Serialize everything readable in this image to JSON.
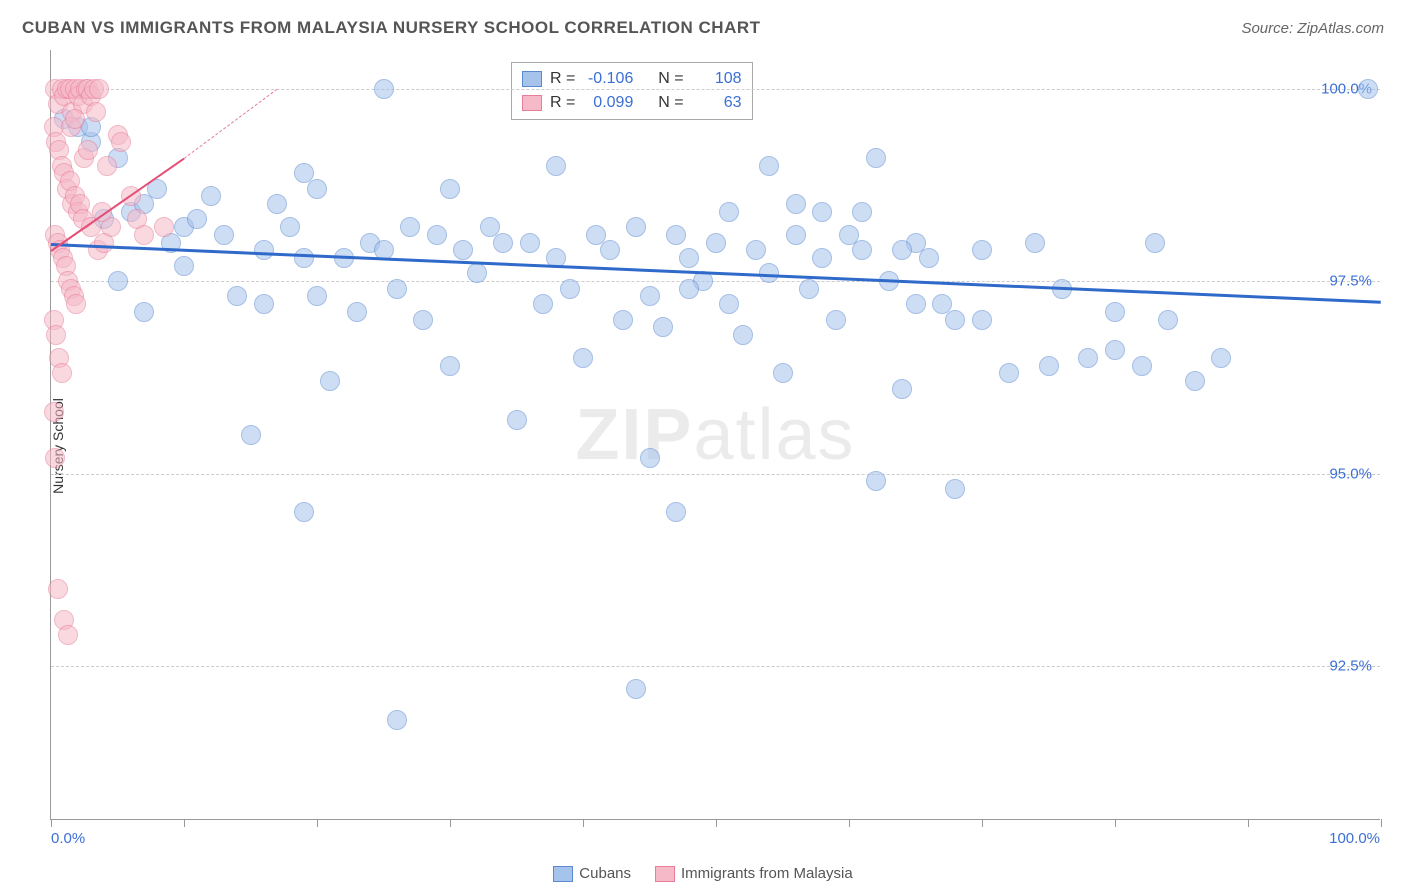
{
  "header": {
    "title": "CUBAN VS IMMIGRANTS FROM MALAYSIA NURSERY SCHOOL CORRELATION CHART",
    "source": "Source: ZipAtlas.com"
  },
  "chart": {
    "type": "scatter",
    "ylabel": "Nursery School",
    "xlim": [
      0,
      100
    ],
    "ylim": [
      90.5,
      100.5
    ],
    "yticks": [
      {
        "value": 92.5,
        "label": "92.5%"
      },
      {
        "value": 95.0,
        "label": "95.0%"
      },
      {
        "value": 97.5,
        "label": "97.5%"
      },
      {
        "value": 100.0,
        "label": "100.0%"
      }
    ],
    "xtick_positions": [
      0,
      10,
      20,
      30,
      40,
      50,
      60,
      70,
      80,
      90,
      100
    ],
    "xaxis_left_label": "0.0%",
    "xaxis_right_label": "100.0%",
    "grid_color": "#cccccc",
    "background_color": "#ffffff",
    "marker_radius": 10,
    "marker_opacity": 0.55,
    "series": [
      {
        "name": "Cubans",
        "fill": "#a6c3ec",
        "stroke": "#5b8ad1",
        "line_color": "#2f69c9",
        "line_width": 3,
        "r_value": "-0.106",
        "n_value": "108",
        "trend": {
          "x1": 0,
          "y1": 98.0,
          "x2": 100,
          "y2": 97.25
        },
        "points": [
          [
            25,
            100
          ],
          [
            99,
            100
          ],
          [
            1,
            99.6
          ],
          [
            2,
            99.5
          ],
          [
            3,
            99.3
          ],
          [
            3,
            99.5
          ],
          [
            19,
            98.9
          ],
          [
            20,
            98.7
          ],
          [
            30,
            98.7
          ],
          [
            38,
            99.0
          ],
          [
            54,
            99.0
          ],
          [
            62,
            99.1
          ],
          [
            4,
            98.3
          ],
          [
            6,
            98.4
          ],
          [
            7,
            98.5
          ],
          [
            9,
            98.0
          ],
          [
            10,
            97.7
          ],
          [
            10,
            98.2
          ],
          [
            11,
            98.3
          ],
          [
            13,
            98.1
          ],
          [
            14,
            97.3
          ],
          [
            16,
            97.9
          ],
          [
            16,
            97.2
          ],
          [
            18,
            98.2
          ],
          [
            19,
            97.8
          ],
          [
            20,
            97.3
          ],
          [
            21,
            96.2
          ],
          [
            22,
            97.8
          ],
          [
            23,
            97.1
          ],
          [
            24,
            98.0
          ],
          [
            25,
            97.9
          ],
          [
            26,
            97.4
          ],
          [
            27,
            98.2
          ],
          [
            28,
            97.0
          ],
          [
            29,
            98.1
          ],
          [
            30,
            96.4
          ],
          [
            31,
            97.9
          ],
          [
            32,
            97.6
          ],
          [
            33,
            98.2
          ],
          [
            34,
            98.0
          ],
          [
            35,
            95.7
          ],
          [
            36,
            98.0
          ],
          [
            37,
            97.2
          ],
          [
            38,
            97.8
          ],
          [
            39,
            97.4
          ],
          [
            40,
            96.5
          ],
          [
            41,
            98.1
          ],
          [
            42,
            97.9
          ],
          [
            43,
            97.0
          ],
          [
            44,
            98.2
          ],
          [
            45,
            97.3
          ],
          [
            46,
            96.9
          ],
          [
            47,
            98.1
          ],
          [
            48,
            97.8
          ],
          [
            49,
            97.5
          ],
          [
            50,
            98.0
          ],
          [
            51,
            97.2
          ],
          [
            52,
            96.8
          ],
          [
            53,
            97.9
          ],
          [
            54,
            97.6
          ],
          [
            55,
            96.3
          ],
          [
            56,
            98.1
          ],
          [
            57,
            97.4
          ],
          [
            58,
            97.8
          ],
          [
            59,
            97.0
          ],
          [
            60,
            98.1
          ],
          [
            61,
            97.9
          ],
          [
            62,
            94.9
          ],
          [
            63,
            97.5
          ],
          [
            64,
            96.1
          ],
          [
            65,
            98.0
          ],
          [
            66,
            97.8
          ],
          [
            67,
            97.2
          ],
          [
            68,
            97.0
          ],
          [
            70,
            97.9
          ],
          [
            72,
            96.3
          ],
          [
            74,
            98.0
          ],
          [
            76,
            97.4
          ],
          [
            78,
            96.5
          ],
          [
            80,
            97.1
          ],
          [
            82,
            96.4
          ],
          [
            84,
            97.0
          ],
          [
            86,
            96.2
          ],
          [
            88,
            96.5
          ],
          [
            5,
            99.1
          ],
          [
            8,
            98.7
          ],
          [
            12,
            98.6
          ],
          [
            17,
            98.5
          ],
          [
            15,
            95.5
          ],
          [
            19,
            94.5
          ],
          [
            26,
            91.8
          ],
          [
            44,
            92.2
          ],
          [
            45,
            95.2
          ],
          [
            47,
            94.5
          ],
          [
            48,
            97.4
          ],
          [
            51,
            98.4
          ],
          [
            56,
            98.5
          ],
          [
            58,
            98.4
          ],
          [
            61,
            98.4
          ],
          [
            64,
            97.9
          ],
          [
            65,
            97.2
          ],
          [
            68,
            94.8
          ],
          [
            70,
            97.0
          ],
          [
            75,
            96.4
          ],
          [
            80,
            96.6
          ],
          [
            83,
            98.0
          ],
          [
            5,
            97.5
          ],
          [
            7,
            97.1
          ]
        ]
      },
      {
        "name": "Immigrants from Malaysia",
        "fill": "#f5b9c8",
        "stroke": "#e77d98",
        "line_color": "#e54f77",
        "line_width": 2.5,
        "r_value": "0.099",
        "n_value": "63",
        "trend": {
          "x1": 0,
          "y1": 97.9,
          "x2": 10,
          "y2": 99.1
        },
        "projection": {
          "x1": 10,
          "y1": 99.1,
          "x2": 17,
          "y2": 100
        },
        "points": [
          [
            0.3,
            100
          ],
          [
            0.5,
            99.8
          ],
          [
            0.8,
            100
          ],
          [
            1.0,
            99.9
          ],
          [
            1.2,
            100
          ],
          [
            1.4,
            100
          ],
          [
            1.6,
            99.7
          ],
          [
            1.8,
            100
          ],
          [
            2.0,
            99.9
          ],
          [
            2.2,
            100
          ],
          [
            2.4,
            99.8
          ],
          [
            2.6,
            100
          ],
          [
            2.8,
            100
          ],
          [
            3.0,
            99.9
          ],
          [
            3.2,
            100
          ],
          [
            3.4,
            99.7
          ],
          [
            3.6,
            100
          ],
          [
            0.2,
            99.5
          ],
          [
            0.4,
            99.3
          ],
          [
            0.6,
            99.2
          ],
          [
            0.8,
            99.0
          ],
          [
            1.0,
            98.9
          ],
          [
            1.2,
            98.7
          ],
          [
            1.4,
            98.8
          ],
          [
            1.6,
            98.5
          ],
          [
            1.8,
            98.6
          ],
          [
            2.0,
            98.4
          ],
          [
            2.2,
            98.5
          ],
          [
            2.4,
            98.3
          ],
          [
            0.3,
            98.1
          ],
          [
            0.5,
            98.0
          ],
          [
            0.7,
            97.9
          ],
          [
            0.9,
            97.8
          ],
          [
            1.1,
            97.7
          ],
          [
            1.3,
            97.5
          ],
          [
            1.5,
            97.4
          ],
          [
            1.7,
            97.3
          ],
          [
            1.9,
            97.2
          ],
          [
            0.2,
            97.0
          ],
          [
            0.4,
            96.8
          ],
          [
            0.6,
            96.5
          ],
          [
            0.8,
            96.3
          ],
          [
            0.3,
            95.2
          ],
          [
            0.5,
            93.5
          ],
          [
            0.2,
            95.8
          ],
          [
            1.0,
            93.1
          ],
          [
            1.3,
            92.9
          ],
          [
            5.0,
            99.4
          ],
          [
            5.3,
            99.3
          ],
          [
            4.5,
            98.2
          ],
          [
            3.8,
            98.4
          ],
          [
            4.2,
            99.0
          ],
          [
            3.0,
            98.2
          ],
          [
            3.5,
            97.9
          ],
          [
            4.0,
            98.0
          ],
          [
            2.5,
            99.1
          ],
          [
            2.8,
            99.2
          ],
          [
            1.5,
            99.5
          ],
          [
            1.8,
            99.6
          ],
          [
            6.0,
            98.6
          ],
          [
            6.5,
            98.3
          ],
          [
            7.0,
            98.1
          ],
          [
            8.5,
            98.2
          ]
        ]
      }
    ],
    "legend": {
      "r_label": "R =",
      "n_label": "N ="
    },
    "bottom_legend": [
      "Cubans",
      "Immigrants from Malaysia"
    ],
    "watermark": {
      "zip": "ZIP",
      "atlas": "atlas"
    }
  }
}
